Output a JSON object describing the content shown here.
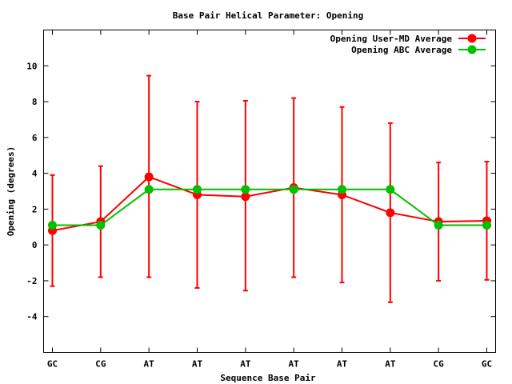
{
  "chart_data": {
    "type": "line",
    "title": "Base Pair Helical Parameter: Opening",
    "xlabel": "Sequence Base Pair",
    "ylabel": "Opening (degrees)",
    "categories": [
      "GC",
      "CG",
      "AT",
      "AT",
      "AT",
      "AT",
      "AT",
      "AT",
      "CG",
      "GC"
    ],
    "ylim": [
      -6,
      12
    ],
    "yticks": [
      -4,
      -2,
      0,
      2,
      4,
      6,
      8,
      10
    ],
    "ytick_labels": [
      "-4",
      "-2",
      "0",
      "2",
      "4",
      "6",
      "8",
      "10"
    ],
    "grid": false,
    "legend_position": "top-right",
    "series": [
      {
        "name": "Opening User-MD Average",
        "color": "#ff0000",
        "values": [
          0.8,
          1.3,
          3.8,
          2.8,
          2.7,
          3.2,
          2.8,
          1.8,
          1.3,
          1.35
        ],
        "error_low": [
          -2.3,
          -1.8,
          -1.8,
          -2.4,
          -2.55,
          -1.8,
          -2.1,
          -3.2,
          -2.0,
          -1.95
        ],
        "error_high": [
          3.9,
          4.4,
          9.45,
          8.0,
          8.05,
          8.2,
          7.7,
          6.8,
          4.6,
          4.65
        ]
      },
      {
        "name": "Opening ABC Average",
        "color": "#00c000",
        "values": [
          1.1,
          1.1,
          3.1,
          3.1,
          3.1,
          3.1,
          3.1,
          3.1,
          1.1,
          1.1
        ]
      }
    ]
  }
}
